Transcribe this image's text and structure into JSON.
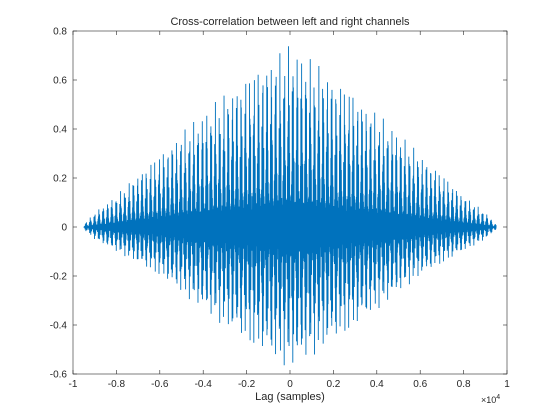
{
  "chart_data": {
    "type": "line",
    "title": "Cross-correlation between left and right channels",
    "xlabel": "Lag (samples)",
    "ylabel": "",
    "x_exponent_base": "×10",
    "x_exponent_power": "4",
    "xlim": [
      -1,
      1
    ],
    "ylim": [
      -0.6,
      0.8
    ],
    "xticks": [
      -1,
      -0.8,
      -0.6,
      -0.4,
      -0.2,
      0,
      0.2,
      0.4,
      0.6,
      0.8,
      1
    ],
    "xtick_labels": [
      "-1",
      "-0.8",
      "-0.6",
      "-0.4",
      "-0.2",
      "0",
      "0.2",
      "0.4",
      "0.6",
      "0.8",
      "1"
    ],
    "yticks": [
      -0.6,
      -0.4,
      -0.2,
      0,
      0.2,
      0.4,
      0.6,
      0.8
    ],
    "ytick_labels": [
      "-0.6",
      "-0.4",
      "-0.2",
      "0",
      "0.2",
      "0.4",
      "0.6",
      "0.8"
    ],
    "grid": false,
    "series": [
      {
        "color": "#0072BD",
        "x": [
          -0.95,
          -0.9,
          -0.8,
          -0.7,
          -0.6,
          -0.5,
          -0.4,
          -0.3,
          -0.2,
          -0.1,
          0,
          0.1,
          0.2,
          0.3,
          0.4,
          0.5,
          0.6,
          0.7,
          0.8,
          0.9,
          0.95
        ],
        "upper_envelope": [
          0.01,
          0.06,
          0.13,
          0.22,
          0.3,
          0.39,
          0.47,
          0.55,
          0.62,
          0.69,
          0.75,
          0.69,
          0.62,
          0.55,
          0.47,
          0.39,
          0.3,
          0.22,
          0.13,
          0.06,
          0.01
        ],
        "lower_envelope": [
          -0.01,
          -0.05,
          -0.1,
          -0.15,
          -0.2,
          -0.27,
          -0.34,
          -0.41,
          -0.47,
          -0.53,
          -0.58,
          -0.53,
          -0.47,
          -0.41,
          -0.34,
          -0.27,
          -0.2,
          -0.15,
          -0.1,
          -0.05,
          -0.01
        ]
      }
    ]
  }
}
